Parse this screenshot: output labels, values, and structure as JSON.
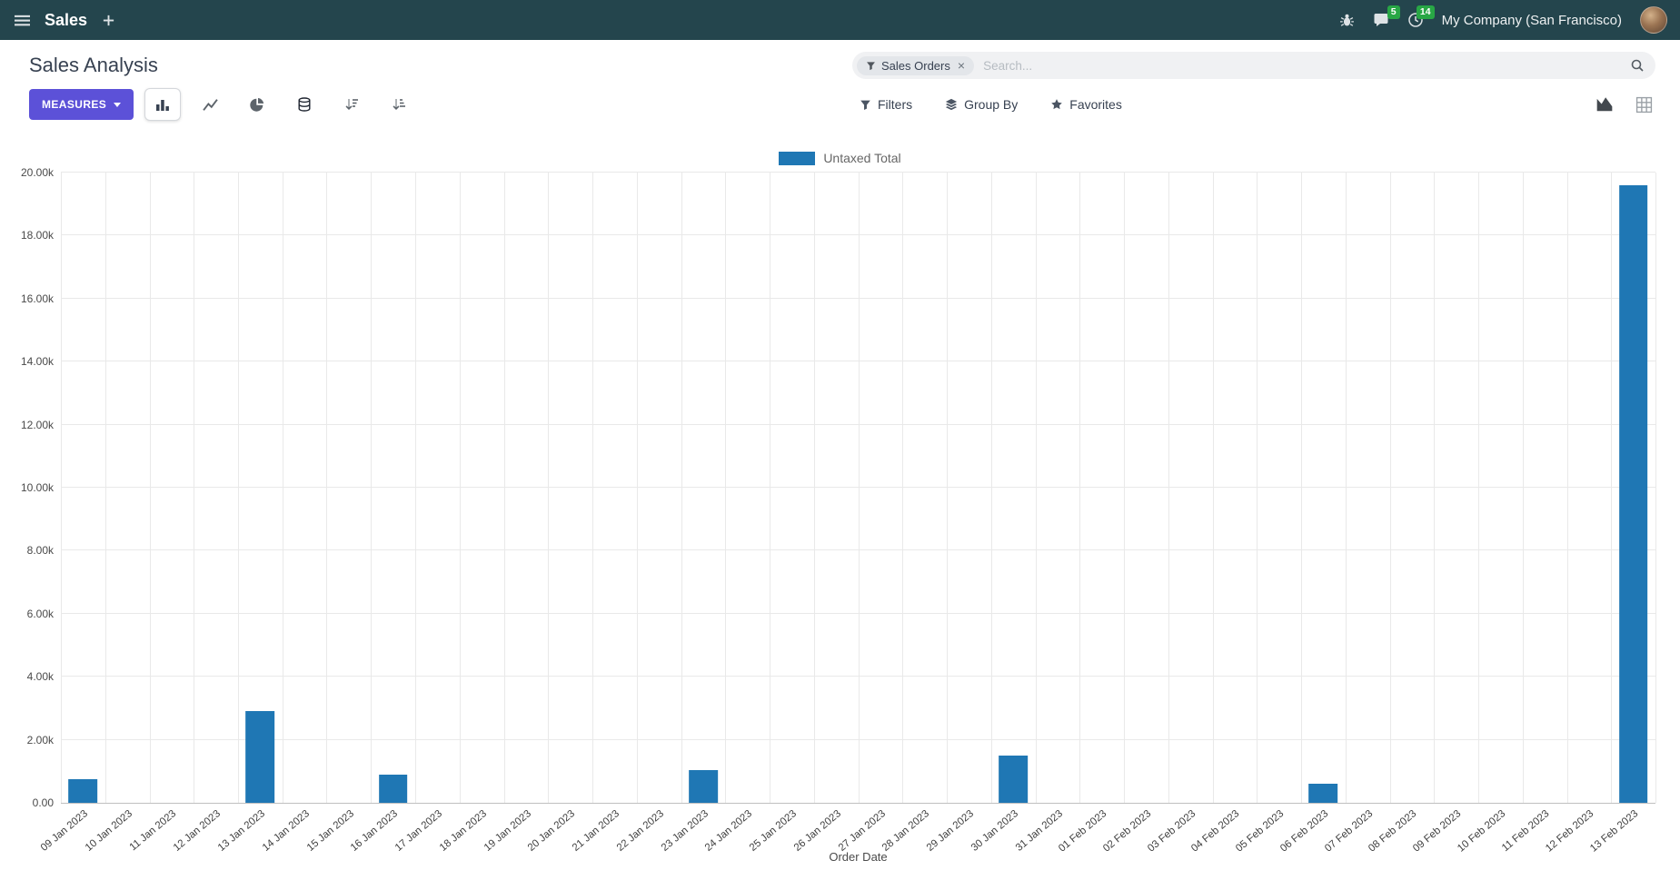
{
  "top_bar": {
    "app_name": "Sales",
    "company": "My Company (San Francisco)",
    "messages_badge": "5",
    "activities_badge": "14"
  },
  "control_panel": {
    "title": "Sales Analysis",
    "measures_label": "MEASURES",
    "filters_label": "Filters",
    "group_by_label": "Group By",
    "favorites_label": "Favorites",
    "search": {
      "facet": "Sales Orders",
      "facet_remove": "×",
      "placeholder": "Search..."
    }
  },
  "icons": {
    "apps-menu": "☰",
    "plus": "+",
    "bug": "🐞",
    "messages": "💬",
    "activities": "🕐",
    "filter-funnel": "▼-funnel",
    "group-by-layers": "≣",
    "favorites-star": "★",
    "search-magnifier": "🔍",
    "bar-chart": "bars",
    "line-chart": "line",
    "pie-chart": "pie",
    "stacked-database": "⛁",
    "sort-desc": "↓≡",
    "sort-asc": "↓≡",
    "graph-view": "area",
    "pivot-view": "grid"
  },
  "colors": {
    "topbar": "#24454d",
    "primary_button": "#5C51D8",
    "badge_green": "#28a745",
    "bar_blue": "#1f77b4"
  },
  "chart_data": {
    "type": "bar",
    "title": "",
    "xlabel": "Order Date",
    "ylabel": "",
    "ylim": [
      0,
      20000
    ],
    "grid": true,
    "legend_position": "top",
    "yticks": [
      "0.00",
      "2.00k",
      "4.00k",
      "6.00k",
      "8.00k",
      "10.00k",
      "12.00k",
      "14.00k",
      "16.00k",
      "18.00k",
      "20.00k"
    ],
    "categories": [
      "09 Jan 2023",
      "10 Jan 2023",
      "11 Jan 2023",
      "12 Jan 2023",
      "13 Jan 2023",
      "14 Jan 2023",
      "15 Jan 2023",
      "16 Jan 2023",
      "17 Jan 2023",
      "18 Jan 2023",
      "19 Jan 2023",
      "20 Jan 2023",
      "21 Jan 2023",
      "22 Jan 2023",
      "23 Jan 2023",
      "24 Jan 2023",
      "25 Jan 2023",
      "26 Jan 2023",
      "27 Jan 2023",
      "28 Jan 2023",
      "29 Jan 2023",
      "30 Jan 2023",
      "31 Jan 2023",
      "01 Feb 2023",
      "02 Feb 2023",
      "03 Feb 2023",
      "04 Feb 2023",
      "05 Feb 2023",
      "06 Feb 2023",
      "07 Feb 2023",
      "08 Feb 2023",
      "09 Feb 2023",
      "10 Feb 2023",
      "11 Feb 2023",
      "12 Feb 2023",
      "13 Feb 2023"
    ],
    "series": [
      {
        "name": "Untaxed Total",
        "color": "#1f77b4",
        "values": [
          750,
          0,
          0,
          0,
          2900,
          0,
          0,
          900,
          0,
          0,
          0,
          0,
          0,
          0,
          1050,
          0,
          0,
          0,
          0,
          0,
          0,
          1500,
          0,
          0,
          0,
          0,
          0,
          0,
          620,
          0,
          0,
          0,
          0,
          0,
          0,
          19600
        ]
      }
    ]
  }
}
